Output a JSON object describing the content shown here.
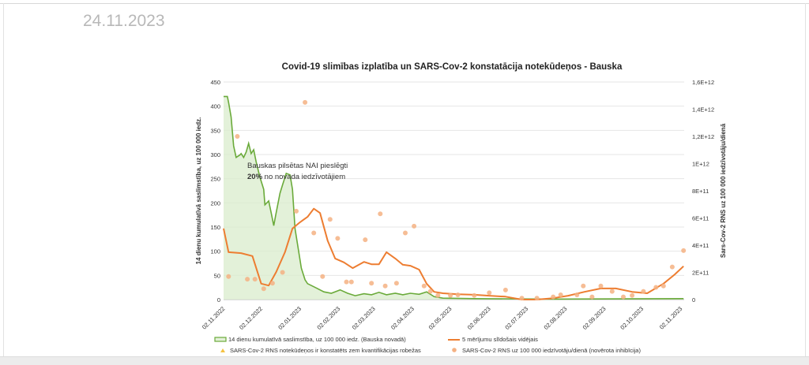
{
  "page": {
    "date": "24.11.2023"
  },
  "chart_data": {
    "type": "line",
    "title": "Covid-19 slimības izplatība un SARS-Cov-2 konstatācija notekūdeņos - Bauska",
    "ylabel": "14 dienu kumulatīvā saslimstība, uz 100 000 iedz.",
    "y2label": "Sars-Cov-2 RNS uz 100 000 iedzīvotāju/dienā",
    "ylim": [
      0,
      450
    ],
    "y2lim": [
      0,
      16
    ],
    "y2unit": "E+11",
    "yticks": [
      "0",
      "50",
      "100",
      "150",
      "200",
      "250",
      "300",
      "350",
      "400",
      "450"
    ],
    "y2ticks": [
      "0",
      "2E+11",
      "4E+11",
      "6E+11",
      "8E+11",
      "1E+12",
      "1,2E+12",
      "1,4E+12",
      "1,6E+12"
    ],
    "xaxis_unit": "days since 02.11.2022",
    "xlim": [
      0,
      372
    ],
    "xticks": [
      {
        "label": "02.11.2022",
        "day": 0
      },
      {
        "label": "02.12.2022",
        "day": 30
      },
      {
        "label": "02.01.2023",
        "day": 61
      },
      {
        "label": "02.02.2023",
        "day": 92
      },
      {
        "label": "02.03.2023",
        "day": 120
      },
      {
        "label": "02.04.2023",
        "day": 151
      },
      {
        "label": "02.05.2023",
        "day": 181
      },
      {
        "label": "02.06.2023",
        "day": 212
      },
      {
        "label": "02.07.2023",
        "day": 242
      },
      {
        "label": "02.08.2023",
        "day": 273
      },
      {
        "label": "02.09.2023",
        "day": 304
      },
      {
        "label": "02.10.2023",
        "day": 334
      },
      {
        "label": "02.11.2023",
        "day": 365
      }
    ],
    "annotation": {
      "line1": "Bauskas pilsētas NAI pieslēgti",
      "bold": "20%",
      "line2": " no novada iedzīvotājiem"
    },
    "series": [
      {
        "name": "14 dienu kumulatīvā saslimstība, uz 100 000 iedz. (Bauska novadā)",
        "type": "area",
        "axis": "left",
        "color": "#6aaa3a",
        "points": [
          [
            0,
            420
          ],
          [
            3,
            420
          ],
          [
            4,
            408
          ],
          [
            6,
            378
          ],
          [
            8,
            318
          ],
          [
            10,
            294
          ],
          [
            13,
            299
          ],
          [
            14,
            302
          ],
          [
            16,
            294
          ],
          [
            18,
            305
          ],
          [
            20,
            323
          ],
          [
            22,
            302
          ],
          [
            24,
            310
          ],
          [
            26,
            285
          ],
          [
            29,
            253
          ],
          [
            32,
            228
          ],
          [
            33,
            196
          ],
          [
            36,
            204
          ],
          [
            38,
            179
          ],
          [
            40,
            153
          ],
          [
            42,
            180
          ],
          [
            45,
            220
          ],
          [
            47,
            237
          ],
          [
            50,
            261
          ],
          [
            53,
            258
          ],
          [
            55,
            228
          ],
          [
            57,
            147
          ],
          [
            60,
            98
          ],
          [
            62,
            65
          ],
          [
            65,
            41
          ],
          [
            67,
            33
          ],
          [
            74,
            24
          ],
          [
            80,
            16
          ],
          [
            86,
            13
          ],
          [
            93,
            20
          ],
          [
            99,
            13
          ],
          [
            105,
            8
          ],
          [
            112,
            12
          ],
          [
            118,
            10
          ],
          [
            124,
            15
          ],
          [
            130,
            10
          ],
          [
            137,
            13
          ],
          [
            143,
            10
          ],
          [
            149,
            13
          ],
          [
            156,
            11
          ],
          [
            162,
            16
          ],
          [
            168,
            6
          ],
          [
            175,
            3
          ],
          [
            200,
            2
          ],
          [
            263,
            1
          ],
          [
            367,
            2
          ]
        ]
      },
      {
        "name": "5 mērījumu slīdošais vidējais",
        "type": "line",
        "axis": "left",
        "color": "#ed7d31",
        "points": [
          [
            0,
            147
          ],
          [
            4,
            98
          ],
          [
            14,
            96
          ],
          [
            23,
            90
          ],
          [
            30,
            33
          ],
          [
            36,
            29
          ],
          [
            42,
            57
          ],
          [
            49,
            98
          ],
          [
            55,
            147
          ],
          [
            61,
            160
          ],
          [
            67,
            171
          ],
          [
            72,
            188
          ],
          [
            77,
            179
          ],
          [
            83,
            122
          ],
          [
            89,
            85
          ],
          [
            96,
            77
          ],
          [
            103,
            65
          ],
          [
            112,
            78
          ],
          [
            118,
            73
          ],
          [
            124,
            73
          ],
          [
            130,
            98
          ],
          [
            137,
            85
          ],
          [
            143,
            72
          ],
          [
            149,
            70
          ],
          [
            156,
            62
          ],
          [
            162,
            33
          ],
          [
            168,
            16
          ],
          [
            175,
            13
          ],
          [
            187,
            11
          ],
          [
            200,
            10
          ],
          [
            212,
            8
          ],
          [
            225,
            6
          ],
          [
            238,
            0
          ],
          [
            250,
            0
          ],
          [
            263,
            3
          ],
          [
            275,
            8
          ],
          [
            288,
            16
          ],
          [
            301,
            23
          ],
          [
            313,
            23
          ],
          [
            326,
            16
          ],
          [
            338,
            13
          ],
          [
            351,
            33
          ],
          [
            360,
            52
          ],
          [
            367,
            69
          ]
        ]
      },
      {
        "name": "SARS-Cov-2 RNS notekūdeņos ir konstatēts zem kvantifikācijas robežas",
        "type": "marker",
        "axis": "right",
        "color": "#f5c242",
        "points": []
      },
      {
        "name": "SARS-Cov-2 RNS uz 100 000 iedzīvotāju/dienā (novērota inhibīcija)",
        "type": "scatter",
        "axis": "right",
        "color": "#f4b183",
        "points": [
          [
            4,
            1.7
          ],
          [
            11,
            12.0
          ],
          [
            19,
            1.5
          ],
          [
            25,
            1.5
          ],
          [
            32,
            0.8
          ],
          [
            39,
            1.2
          ],
          [
            47,
            2.0
          ],
          [
            58,
            6.5
          ],
          [
            65,
            14.5
          ],
          [
            72,
            4.9
          ],
          [
            79,
            1.7
          ],
          [
            85,
            5.9
          ],
          [
            91,
            4.5
          ],
          [
            98,
            1.3
          ],
          [
            102,
            1.3
          ],
          [
            113,
            4.4
          ],
          [
            118,
            1.2
          ],
          [
            125,
            6.3
          ],
          [
            129,
            1.0
          ],
          [
            138,
            1.2
          ],
          [
            145,
            4.9
          ],
          [
            152,
            5.4
          ],
          [
            160,
            1.0
          ],
          [
            165,
            0.6
          ],
          [
            171,
            0.3
          ],
          [
            181,
            0.3
          ],
          [
            187,
            0.35
          ],
          [
            200,
            0.3
          ],
          [
            212,
            0.5
          ],
          [
            225,
            0.7
          ],
          [
            238,
            0.1
          ],
          [
            250,
            0.1
          ],
          [
            263,
            0.2
          ],
          [
            269,
            0.35
          ],
          [
            282,
            0.35
          ],
          [
            287,
            1.0
          ],
          [
            294,
            0.2
          ],
          [
            301,
            1.0
          ],
          [
            310,
            0.6
          ],
          [
            319,
            0.2
          ],
          [
            326,
            0.3
          ],
          [
            335,
            0.6
          ],
          [
            345,
            0.9
          ],
          [
            351,
            1.0
          ],
          [
            358,
            2.4
          ],
          [
            367,
            3.6
          ]
        ]
      }
    ],
    "legend": "bottom",
    "grid": true
  }
}
